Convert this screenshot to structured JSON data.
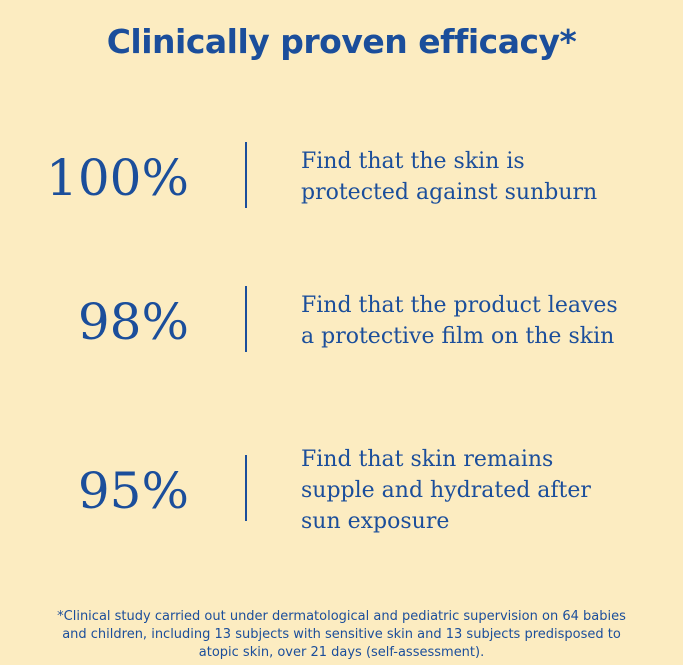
{
  "header": {
    "title": "Clinically proven efficacy*"
  },
  "stats": [
    {
      "value": "100%",
      "lines": [
        "Find that the skin is",
        "protected against sunburn"
      ]
    },
    {
      "value": "98%",
      "lines": [
        "Find that the product leaves",
        "a protective film on the skin"
      ]
    },
    {
      "value": "95%",
      "lines": [
        "Find that skin remains",
        "supple and hydrated after",
        "sun exposure"
      ]
    }
  ],
  "footnote": {
    "lines": [
      "*Clinical study carried out under dermatological and pediatric supervision on 64 babies",
      "and children, including 13 subjects with sensitive skin and 13 subjects predisposed to",
      "atopic skin, over 21 days (self-assessment)."
    ]
  }
}
